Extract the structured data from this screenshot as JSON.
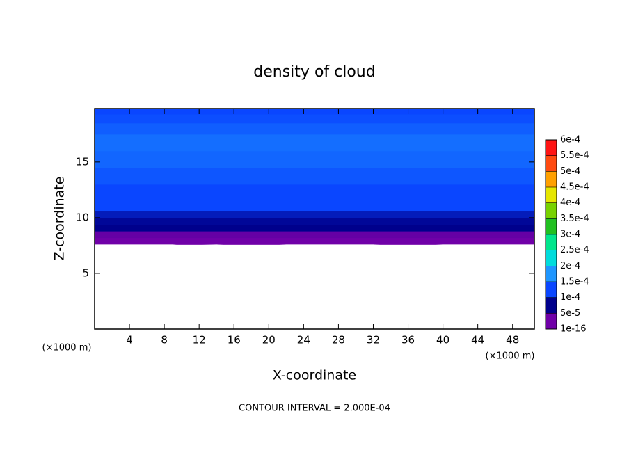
{
  "chart_data": {
    "type": "contour",
    "title": "density of cloud",
    "xlabel": "X-coordinate",
    "ylabel": "Z-coordinate",
    "x_unit_label": "(×1000 m)",
    "y_unit_label": "(×1000 m)",
    "footnote": "CONTOUR INTERVAL = 2.000E-04",
    "xlim": [
      0,
      50.5
    ],
    "xticks": [
      4,
      8,
      12,
      16,
      20,
      24,
      28,
      32,
      36,
      40,
      44,
      48
    ],
    "ylim": [
      0,
      19.8
    ],
    "yticks": [
      5,
      10,
      15
    ],
    "profile": {
      "z": [
        7.6,
        8.2,
        8.8,
        9.4,
        10,
        10.6,
        11.2,
        12,
        13,
        14.5,
        16,
        17.5,
        18.5,
        19.3
      ],
      "values": [
        1e-05,
        3e-05,
        6e-05,
        8e-05,
        9.5e-05,
        0.000105,
        0.000115,
        0.000125,
        0.000135,
        0.000145,
        0.00015,
        0.00014,
        0.00013,
        0.000125
      ]
    },
    "cloud_base": {
      "x": [
        0,
        5,
        9,
        10,
        14,
        18,
        22,
        24,
        30,
        32,
        36,
        40,
        44,
        48,
        50.5
      ],
      "z": [
        7.6,
        7.6,
        7.6,
        7.5,
        7.6,
        7.4,
        7.6,
        7.6,
        7.6,
        7.6,
        7.4,
        7.6,
        7.6,
        7.6,
        7.6
      ]
    },
    "colorbar": {
      "levels": [
        {
          "value": 1e-16,
          "label": "1e-16"
        },
        {
          "value": 5e-05,
          "label": "5e-5"
        },
        {
          "value": 0.0001,
          "label": "1e-4"
        },
        {
          "value": 0.00015,
          "label": "1.5e-4"
        },
        {
          "value": 0.0002,
          "label": "2e-4"
        },
        {
          "value": 0.00025,
          "label": "2.5e-4"
        },
        {
          "value": 0.0003,
          "label": "3e-4"
        },
        {
          "value": 0.00035,
          "label": "3.5e-4"
        },
        {
          "value": 0.0004,
          "label": "4e-4"
        },
        {
          "value": 0.00045,
          "label": "4.5e-4"
        },
        {
          "value": 0.0005,
          "label": "5e-4"
        },
        {
          "value": 0.00055,
          "label": "5.5e-4"
        },
        {
          "value": 0.0006,
          "label": "6e-4"
        }
      ],
      "colors": [
        "#7000a8",
        "#00008c",
        "#0a46ff",
        "#1e96ff",
        "#00dcdc",
        "#00e68c",
        "#20c020",
        "#78d200",
        "#e6e600",
        "#ffa000",
        "#ff4a10",
        "#ff1414"
      ]
    }
  }
}
